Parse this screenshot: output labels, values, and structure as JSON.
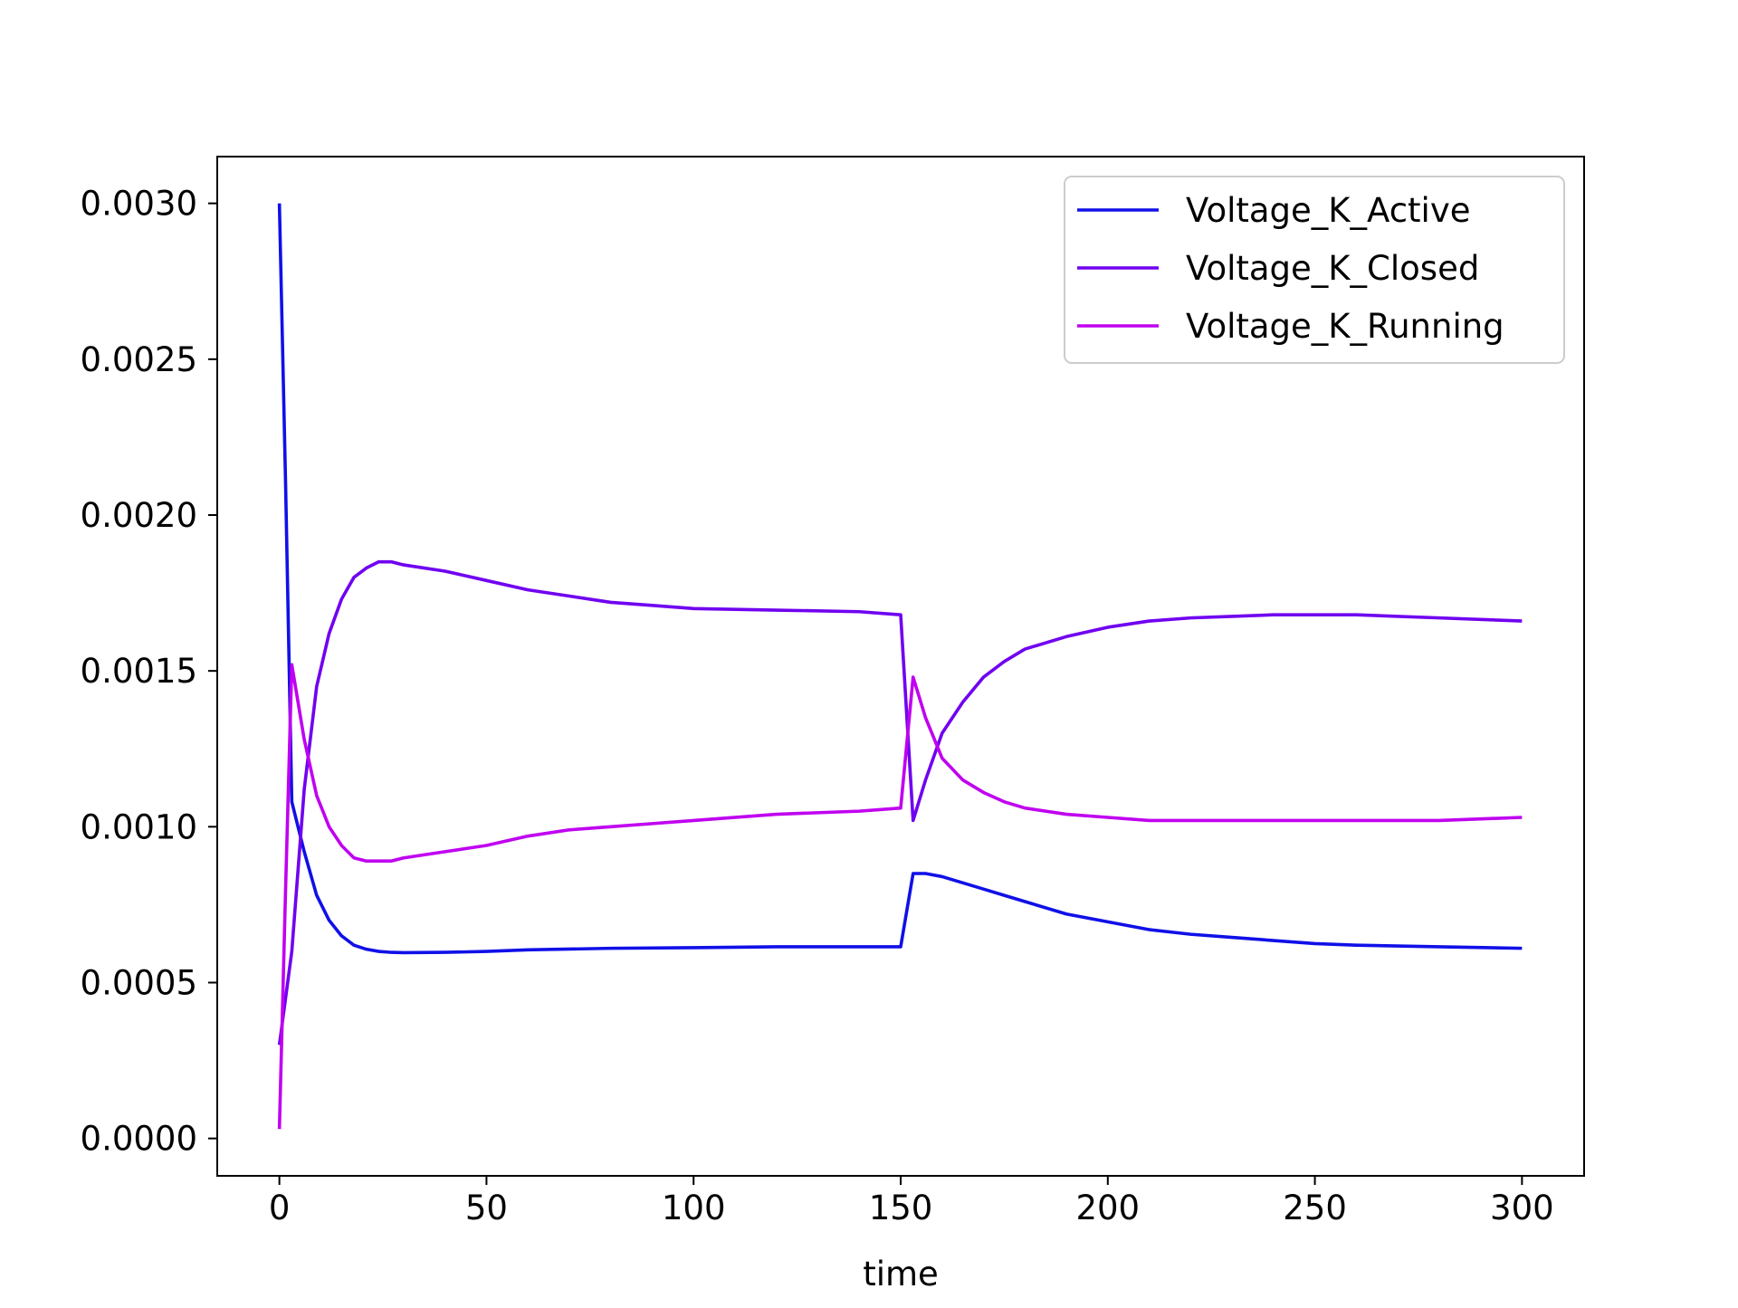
{
  "chart_data": {
    "type": "line",
    "title": "",
    "xlabel": "time",
    "ylabel": "",
    "xlim": [
      -15,
      315
    ],
    "ylim": [
      -0.00012,
      0.00315
    ],
    "xticks": [
      {
        "value": 0,
        "label": "0"
      },
      {
        "value": 50,
        "label": "50"
      },
      {
        "value": 100,
        "label": "100"
      },
      {
        "value": 150,
        "label": "150"
      },
      {
        "value": 200,
        "label": "200"
      },
      {
        "value": 250,
        "label": "250"
      },
      {
        "value": 300,
        "label": "300"
      }
    ],
    "yticks": [
      {
        "value": 0.0,
        "label": "0.0000"
      },
      {
        "value": 0.0005,
        "label": "0.0005"
      },
      {
        "value": 0.001,
        "label": "0.0010"
      },
      {
        "value": 0.0015,
        "label": "0.0015"
      },
      {
        "value": 0.002,
        "label": "0.0020"
      },
      {
        "value": 0.0025,
        "label": "0.0025"
      },
      {
        "value": 0.003,
        "label": "0.0030"
      }
    ],
    "grid": false,
    "legend_position": "top-right",
    "series": [
      {
        "name": "Voltage_K_Active",
        "color": "#1010e8",
        "points": [
          [
            0,
            0.003
          ],
          [
            1.5,
            0.0021
          ],
          [
            3,
            0.00108
          ],
          [
            6,
            0.00092
          ],
          [
            9,
            0.00078
          ],
          [
            12,
            0.0007
          ],
          [
            15,
            0.00065
          ],
          [
            18,
            0.00062
          ],
          [
            21,
            0.000607
          ],
          [
            24,
            0.0006
          ],
          [
            27,
            0.000597
          ],
          [
            30,
            0.000596
          ],
          [
            40,
            0.000597
          ],
          [
            50,
            0.0006
          ],
          [
            60,
            0.000605
          ],
          [
            80,
            0.00061
          ],
          [
            100,
            0.000612
          ],
          [
            120,
            0.000615
          ],
          [
            140,
            0.000615
          ],
          [
            150,
            0.000615
          ],
          [
            153,
            0.00085
          ],
          [
            156,
            0.00085
          ],
          [
            160,
            0.00084
          ],
          [
            165,
            0.00082
          ],
          [
            170,
            0.0008
          ],
          [
            175,
            0.00078
          ],
          [
            180,
            0.00076
          ],
          [
            190,
            0.00072
          ],
          [
            200,
            0.000695
          ],
          [
            210,
            0.00067
          ],
          [
            220,
            0.000655
          ],
          [
            230,
            0.000645
          ],
          [
            240,
            0.000635
          ],
          [
            250,
            0.000625
          ],
          [
            260,
            0.00062
          ],
          [
            280,
            0.000615
          ],
          [
            300,
            0.00061
          ]
        ]
      },
      {
        "name": "Voltage_K_Closed",
        "color": "#7000f0",
        "points": [
          [
            0,
            0.0003
          ],
          [
            3,
            0.0006
          ],
          [
            6,
            0.00112
          ],
          [
            9,
            0.00145
          ],
          [
            12,
            0.00162
          ],
          [
            15,
            0.00173
          ],
          [
            18,
            0.0018
          ],
          [
            21,
            0.00183
          ],
          [
            24,
            0.00185
          ],
          [
            27,
            0.00185
          ],
          [
            30,
            0.00184
          ],
          [
            40,
            0.00182
          ],
          [
            50,
            0.00179
          ],
          [
            60,
            0.00176
          ],
          [
            70,
            0.00174
          ],
          [
            80,
            0.00172
          ],
          [
            90,
            0.00171
          ],
          [
            100,
            0.0017
          ],
          [
            120,
            0.001695
          ],
          [
            140,
            0.00169
          ],
          [
            150,
            0.00168
          ],
          [
            153,
            0.00102
          ],
          [
            156,
            0.00115
          ],
          [
            160,
            0.0013
          ],
          [
            165,
            0.0014
          ],
          [
            170,
            0.00148
          ],
          [
            175,
            0.00153
          ],
          [
            180,
            0.00157
          ],
          [
            190,
            0.00161
          ],
          [
            200,
            0.00164
          ],
          [
            210,
            0.00166
          ],
          [
            220,
            0.00167
          ],
          [
            230,
            0.001675
          ],
          [
            240,
            0.00168
          ],
          [
            250,
            0.00168
          ],
          [
            260,
            0.00168
          ],
          [
            280,
            0.00167
          ],
          [
            300,
            0.00166
          ]
        ]
      },
      {
        "name": "Voltage_K_Running",
        "color": "#c000f0",
        "points": [
          [
            0,
            3e-05
          ],
          [
            1.5,
            0.0008
          ],
          [
            3,
            0.00152
          ],
          [
            6,
            0.00128
          ],
          [
            9,
            0.0011
          ],
          [
            12,
            0.001
          ],
          [
            15,
            0.00094
          ],
          [
            18,
            0.0009
          ],
          [
            21,
            0.00089
          ],
          [
            24,
            0.00089
          ],
          [
            27,
            0.00089
          ],
          [
            30,
            0.0009
          ],
          [
            40,
            0.00092
          ],
          [
            50,
            0.00094
          ],
          [
            60,
            0.00097
          ],
          [
            70,
            0.00099
          ],
          [
            80,
            0.001
          ],
          [
            90,
            0.00101
          ],
          [
            100,
            0.00102
          ],
          [
            120,
            0.00104
          ],
          [
            140,
            0.00105
          ],
          [
            150,
            0.00106
          ],
          [
            153,
            0.00148
          ],
          [
            156,
            0.00135
          ],
          [
            160,
            0.00122
          ],
          [
            165,
            0.00115
          ],
          [
            170,
            0.00111
          ],
          [
            175,
            0.00108
          ],
          [
            180,
            0.00106
          ],
          [
            190,
            0.00104
          ],
          [
            200,
            0.00103
          ],
          [
            210,
            0.00102
          ],
          [
            220,
            0.00102
          ],
          [
            240,
            0.00102
          ],
          [
            260,
            0.00102
          ],
          [
            280,
            0.00102
          ],
          [
            300,
            0.00103
          ]
        ]
      }
    ]
  }
}
